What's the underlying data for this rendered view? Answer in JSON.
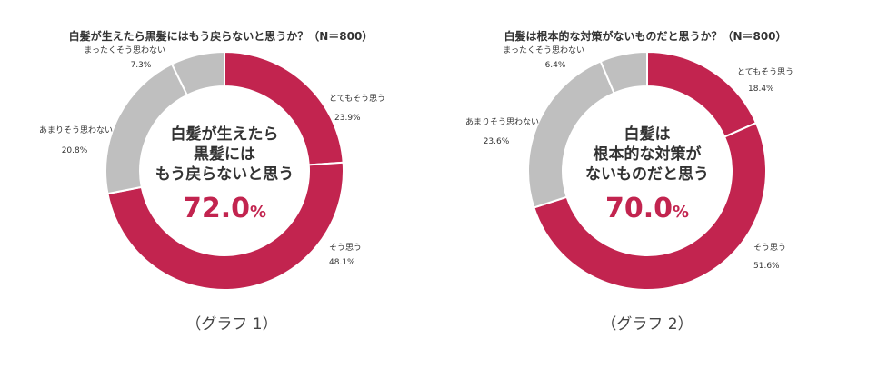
{
  "colors": {
    "accent": "#c2244f",
    "gray": "#bfbfbf",
    "divider": "#ffffff",
    "text": "#333333"
  },
  "chart_data": [
    {
      "type": "pie",
      "title": "白髪が生えたら黒髪にはもう戻らないと思うか？（N＝800）",
      "center_label": [
        "白髪が生えたら",
        "黒髪には",
        "もう戻らないと思う"
      ],
      "center_value": "72.0",
      "center_unit": "%",
      "caption": "（グラフ 1）",
      "categories": [
        "とてもそう思う",
        "そう思う",
        "あまりそう思わない",
        "まったくそう思わない"
      ],
      "values": [
        23.9,
        48.1,
        20.8,
        7.3
      ],
      "value_labels": [
        "23.9%",
        "48.1%",
        "20.8%",
        "7.3%"
      ],
      "slice_colors": [
        "#c2244f",
        "#c2244f",
        "#bfbfbf",
        "#bfbfbf"
      ]
    },
    {
      "type": "pie",
      "title": "白髪は根本的な対策がないものだと思うか？（N＝800）",
      "center_label": [
        "白髪は",
        "根本的な対策が",
        "ないものだと思う"
      ],
      "center_value": "70.0",
      "center_unit": "%",
      "caption": "（グラフ 2）",
      "categories": [
        "とてもそう思う",
        "そう思う",
        "あまりそう思わない",
        "まったくそう思わない"
      ],
      "values": [
        18.4,
        51.6,
        23.6,
        6.4
      ],
      "value_labels": [
        "18.4%",
        "51.6%",
        "23.6%",
        "6.4%"
      ],
      "slice_colors": [
        "#c2244f",
        "#c2244f",
        "#bfbfbf",
        "#bfbfbf"
      ]
    }
  ]
}
